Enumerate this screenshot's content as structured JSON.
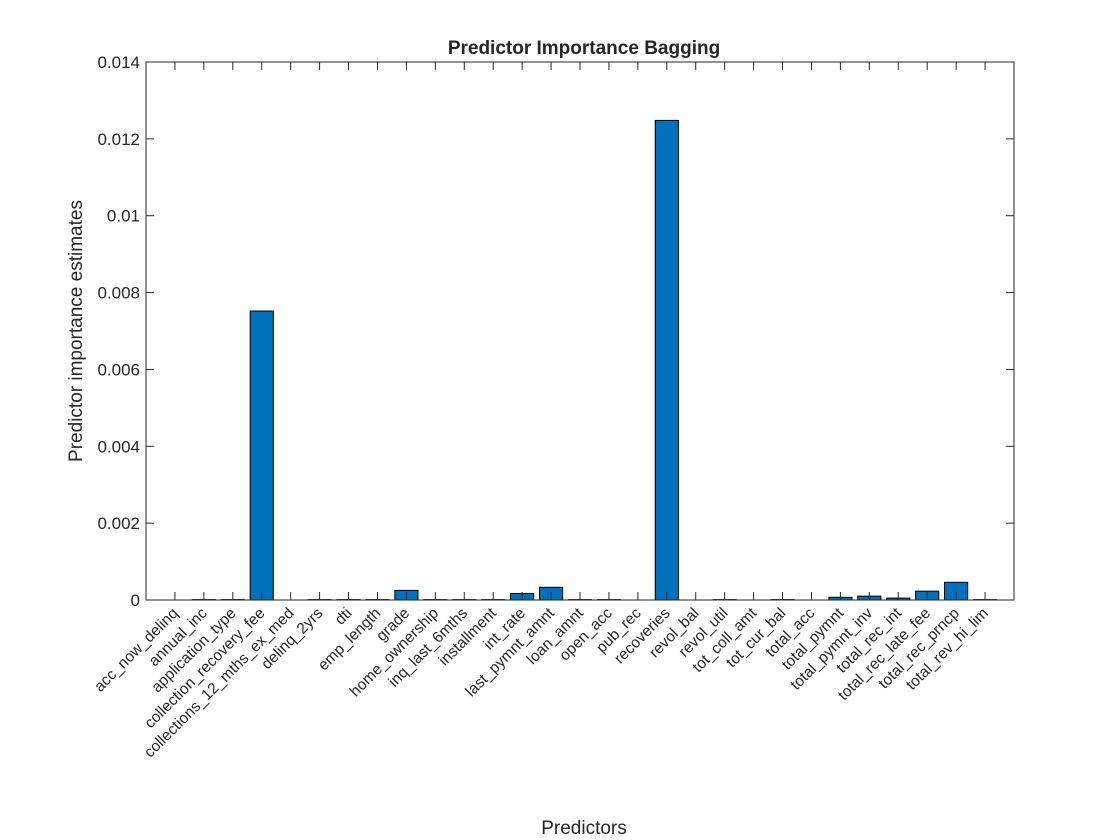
{
  "chart_data": {
    "type": "bar",
    "title": "Predictor Importance Bagging",
    "xlabel": "Predictors",
    "ylabel": "Predictor importance estimates",
    "ylim": [
      0,
      0.014
    ],
    "yticks": [
      0,
      0.002,
      0.004,
      0.006,
      0.008,
      0.01,
      0.012,
      0.014
    ],
    "ytick_labels": [
      "0",
      "0.002",
      "0.004",
      "0.006",
      "0.008",
      "0.01",
      "0.012",
      "0.014"
    ],
    "grid": false,
    "bar_color": "#0072BD",
    "categories": [
      "acc_now_delinq",
      "annual_inc",
      "application_type",
      "collection_recovery_fee",
      "collections_12_mths_ex_med",
      "delinq_2yrs",
      "dti",
      "emp_length",
      "grade",
      "home_ownership",
      "inq_last_6mths",
      "installment",
      "int_rate",
      "last_pymnt_amnt",
      "loan_amnt",
      "open_acc",
      "pub_rec",
      "recoveries",
      "revol_bal",
      "revol_util",
      "tot_coll_amt",
      "tot_cur_bal",
      "total_acc",
      "total_pymnt",
      "total_pymnt_inv",
      "total_rec_int",
      "total_rec_late_fee",
      "total_rec_prncp",
      "total_rev_hi_lim"
    ],
    "values": [
      0.0,
      1e-05,
      1e-05,
      0.00752,
      0.0,
      1e-05,
      1e-05,
      1e-05,
      0.00025,
      1e-05,
      1e-05,
      1e-05,
      0.00017,
      0.00033,
      1e-05,
      1e-05,
      0.0,
      0.01248,
      0.0,
      1e-05,
      0.0,
      1e-05,
      0.0,
      7e-05,
      0.0001,
      5e-05,
      0.00023,
      0.00046,
      1e-05
    ]
  }
}
